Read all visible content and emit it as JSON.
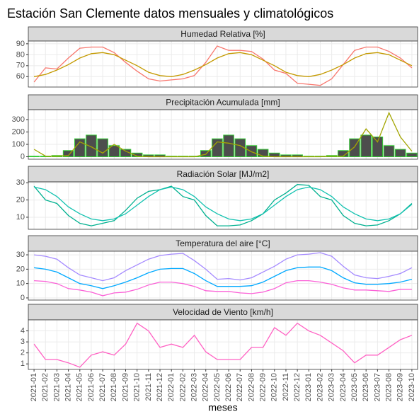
{
  "title": "Estación San Clemente datos mensuales y climatológicos",
  "xlabel": "meses",
  "categories": [
    "2021-01",
    "2021-02",
    "2021-03",
    "2021-04",
    "2021-05",
    "2021-06",
    "2021-07",
    "2021-08",
    "2021-09",
    "2021-10",
    "2021-11",
    "2021-12",
    "2022-01",
    "2022-02",
    "2022-03",
    "2022-04",
    "2022-05",
    "2022-06",
    "2022-07",
    "2022-08",
    "2022-09",
    "2022-10",
    "2022-11",
    "2022-12",
    "2023-01",
    "2023-02",
    "2023-03",
    "2023-04",
    "2023-05",
    "2023-06",
    "2023-07",
    "2023-08",
    "2023-09",
    "2023-10"
  ],
  "chart_data": [
    {
      "type": "line",
      "title": "Humedad Relativa [%]",
      "ylim": [
        50.5,
        92.5
      ],
      "yticks": [
        60,
        70,
        80,
        90
      ],
      "grid": true,
      "series": [
        {
          "color": "#f8766d",
          "values": [
            55,
            68,
            67,
            77,
            86,
            87,
            87,
            82,
            73,
            65,
            58,
            56,
            57,
            58,
            61,
            73,
            88,
            84,
            84,
            83,
            76,
            66,
            63,
            54,
            53,
            52,
            58,
            71,
            84,
            87,
            87,
            83,
            77,
            68
          ]
        },
        {
          "color": "#c49a00",
          "values": [
            60,
            62,
            66,
            71,
            77,
            81,
            82,
            80,
            75,
            70,
            64,
            61,
            60,
            62,
            66,
            71,
            77,
            81,
            82,
            80,
            75,
            70,
            64,
            61,
            60,
            62,
            66,
            71,
            77,
            81,
            82,
            80,
            75,
            70
          ]
        }
      ]
    },
    {
      "type": "combo",
      "title": "Precipitación Acumulada [mm]",
      "ylim": [
        -20,
        380
      ],
      "yticks": [
        0,
        100,
        200,
        300
      ],
      "grid": true,
      "series": [
        {
          "kind": "bar",
          "color": "#4d4d4d",
          "edge_color": "#33cc33",
          "values": [
            5,
            5,
            10,
            50,
            145,
            175,
            145,
            90,
            60,
            30,
            15,
            15,
            5,
            5,
            5,
            50,
            145,
            175,
            145,
            90,
            60,
            30,
            15,
            15,
            5,
            5,
            10,
            50,
            145,
            175,
            160,
            90,
            60,
            30
          ]
        },
        {
          "kind": "line",
          "color": "#a3a500",
          "values": [
            60,
            5,
            5,
            10,
            120,
            80,
            30,
            100,
            45,
            5,
            0,
            0,
            0,
            0,
            0,
            20,
            120,
            110,
            90,
            40,
            5,
            0,
            0,
            0,
            0,
            0,
            5,
            5,
            80,
            225,
            120,
            355,
            160,
            45
          ]
        }
      ]
    },
    {
      "type": "line",
      "title": "Radiación Solar [MJ/m2]",
      "ylim": [
        3,
        30.5
      ],
      "yticks": [
        10,
        20,
        30
      ],
      "grid": true,
      "series": [
        {
          "color": "#00b08f",
          "values": [
            28,
            20,
            18,
            11,
            6.5,
            5,
            6.5,
            8,
            14,
            21,
            25,
            26,
            28,
            22,
            20,
            11,
            5,
            5,
            5.5,
            8,
            12,
            20,
            24,
            29,
            28.5,
            22,
            20,
            11,
            6.5,
            5,
            5.5,
            8,
            12,
            18
          ]
        },
        {
          "color": "#13c2b0",
          "values": [
            27.5,
            26,
            22,
            16,
            12,
            9,
            8,
            9,
            12,
            17,
            22,
            26,
            27.5,
            26,
            22,
            16,
            12,
            9,
            8,
            9,
            12,
            17,
            22,
            26,
            27.5,
            26,
            22,
            16,
            12,
            9,
            8,
            9,
            12,
            17.5
          ]
        }
      ]
    },
    {
      "type": "line",
      "title": "Temperatura del aire [°C]",
      "ylim": [
        -1.5,
        32.5
      ],
      "yticks": [
        0,
        10,
        20,
        30
      ],
      "grid": true,
      "series": [
        {
          "color": "#a58aff",
          "values": [
            30,
            29,
            27,
            21,
            16,
            14,
            12,
            14,
            19,
            23,
            27,
            29.5,
            30.5,
            31,
            26,
            20,
            13,
            13.5,
            12.5,
            14,
            18,
            22,
            27,
            30,
            30.5,
            31.5,
            29,
            22,
            16,
            14,
            13.5,
            15,
            17,
            21
          ]
        },
        {
          "color": "#00a9ff",
          "values": [
            21,
            20,
            18,
            14,
            10,
            8.5,
            6.5,
            8.5,
            11,
            14,
            17.5,
            20,
            20.5,
            20.5,
            17,
            12,
            8,
            8,
            8,
            8.5,
            11,
            15,
            19,
            21,
            21.5,
            21.5,
            19,
            14,
            10.5,
            9.5,
            9.5,
            10,
            11,
            13
          ]
        },
        {
          "color": "#fb61d7",
          "values": [
            12,
            11.5,
            10,
            6.5,
            5.5,
            4,
            1.5,
            3.5,
            4,
            6,
            9,
            11,
            11,
            10,
            8,
            5,
            4.5,
            4.5,
            3.5,
            3,
            4,
            6.5,
            10.5,
            12,
            12,
            11,
            9.5,
            7,
            5.5,
            5.5,
            5,
            4.5,
            6,
            6
          ]
        }
      ]
    },
    {
      "type": "line",
      "title": "Velocidad de Viento [km/h]",
      "ylim": [
        0.5,
        5
      ],
      "yticks": [
        1,
        2,
        3,
        4
      ],
      "grid": true,
      "series": [
        {
          "color": "#ff61c3",
          "values": [
            2.8,
            1.4,
            1.4,
            1.1,
            0.7,
            1.8,
            2.1,
            1.8,
            2.8,
            4.7,
            4.0,
            2.5,
            2.8,
            2.5,
            3.6,
            2.1,
            1.4,
            1.4,
            1.4,
            2.5,
            2.5,
            4.3,
            3.6,
            4.7,
            4.0,
            3.6,
            2.9,
            2.2,
            1.1,
            1.8,
            1.8,
            2.5,
            3.2,
            3.6
          ]
        }
      ]
    }
  ]
}
